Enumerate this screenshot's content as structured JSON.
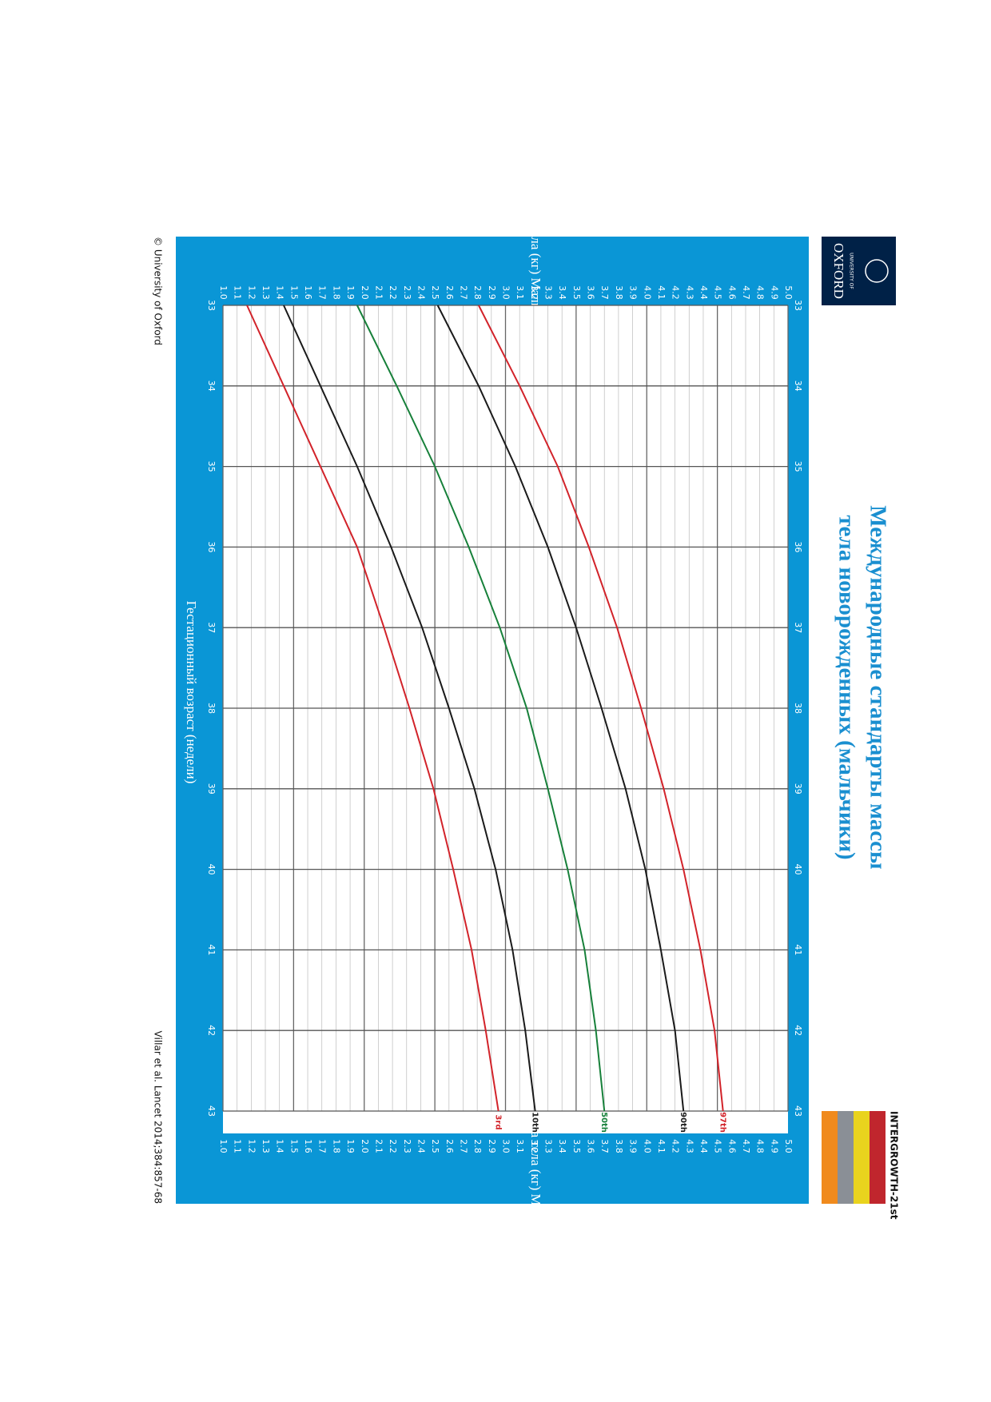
{
  "header": {
    "title_line1": "Международные стандарты массы",
    "title_line2": "тела   новорожденных (мальчики)",
    "oxford_small": "UNIVERSITY OF",
    "oxford": "OXFORD",
    "intergrowth": "INTERGROWTH-21st"
  },
  "chart_data": {
    "type": "line",
    "ylabel_left": "Масса тела (кг) Мальчики",
    "ylabel_right": "Масса тела  (кг) Мальчики",
    "xlabel": "Гестационный возраст (недели)",
    "x": [
      33,
      34,
      35,
      36,
      37,
      38,
      39,
      40,
      41,
      42,
      43
    ],
    "xlim": [
      33,
      43
    ],
    "xticks": [
      33,
      34,
      35,
      36,
      37,
      38,
      39,
      40,
      41,
      42,
      43
    ],
    "ylim": [
      1.0,
      5.0
    ],
    "yticks": [
      {
        "value": 1.0,
        "label": "1.0"
      },
      {
        "value": 1.1,
        "label": "1.1"
      },
      {
        "value": 1.2,
        "label": "1.2"
      },
      {
        "value": 1.3,
        "label": "1.3"
      },
      {
        "value": 1.4,
        "label": "1.4"
      },
      {
        "value": 1.5,
        "label": "1.5"
      },
      {
        "value": 1.6,
        "label": "1.6"
      },
      {
        "value": 1.7,
        "label": "1.7"
      },
      {
        "value": 1.8,
        "label": "1.8"
      },
      {
        "value": 1.9,
        "label": "1.9"
      },
      {
        "value": 2.0,
        "label": "2.0"
      },
      {
        "value": 2.1,
        "label": "2.1"
      },
      {
        "value": 2.2,
        "label": "2.2"
      },
      {
        "value": 2.3,
        "label": "2.3"
      },
      {
        "value": 2.4,
        "label": "2.4"
      },
      {
        "value": 2.5,
        "label": "2.5"
      },
      {
        "value": 2.6,
        "label": "2.6"
      },
      {
        "value": 2.7,
        "label": "2.7"
      },
      {
        "value": 2.8,
        "label": "2.8"
      },
      {
        "value": 2.9,
        "label": "2.9"
      },
      {
        "value": 3.0,
        "label": "3.0"
      },
      {
        "value": 3.1,
        "label": "3.1"
      },
      {
        "value": 3.2,
        "label": "3.2"
      },
      {
        "value": 3.3,
        "label": "3.3"
      },
      {
        "value": 3.4,
        "label": "3.4"
      },
      {
        "value": 3.5,
        "label": "3.5"
      },
      {
        "value": 3.6,
        "label": "3.6"
      },
      {
        "value": 3.7,
        "label": "3.7"
      },
      {
        "value": 3.8,
        "label": "3.8"
      },
      {
        "value": 3.9,
        "label": "3.9"
      },
      {
        "value": 4.0,
        "label": "4.0"
      },
      {
        "value": 4.1,
        "label": "4.1"
      },
      {
        "value": 4.2,
        "label": "4.2"
      },
      {
        "value": 4.3,
        "label": "4.3"
      },
      {
        "value": 4.4,
        "label": "4.4"
      },
      {
        "value": 4.5,
        "label": "4.5"
      },
      {
        "value": 4.6,
        "label": "4.6"
      },
      {
        "value": 4.7,
        "label": "4.7"
      },
      {
        "value": 4.8,
        "label": "4.8"
      },
      {
        "value": 4.9,
        "label": "4.9"
      },
      {
        "value": 5.0,
        "label": "5.0"
      }
    ],
    "grid": true,
    "series": [
      {
        "name": "3rd",
        "color": "#d2232a",
        "values": [
          1.17,
          1.43,
          1.69,
          1.95,
          2.14,
          2.32,
          2.49,
          2.63,
          2.76,
          2.86,
          2.95
        ]
      },
      {
        "name": "10th",
        "color": "#1a1a1a",
        "values": [
          1.43,
          1.69,
          1.95,
          2.19,
          2.41,
          2.6,
          2.78,
          2.93,
          3.05,
          3.14,
          3.21
        ]
      },
      {
        "name": "50th",
        "color": "#17803a",
        "values": [
          1.95,
          2.23,
          2.5,
          2.74,
          2.96,
          3.15,
          3.3,
          3.44,
          3.56,
          3.64,
          3.7
        ]
      },
      {
        "name": "90th",
        "color": "#1a1a1a",
        "values": [
          2.52,
          2.81,
          3.07,
          3.3,
          3.5,
          3.68,
          3.85,
          3.99,
          4.1,
          4.2,
          4.26
        ]
      },
      {
        "name": "97th",
        "color": "#d2232a",
        "values": [
          2.81,
          3.1,
          3.37,
          3.59,
          3.79,
          3.96,
          4.12,
          4.26,
          4.38,
          4.48,
          4.54
        ]
      }
    ]
  },
  "footer": {
    "left": "© University of Oxford",
    "right": "Villar et al. Lancet 2014;384:857-68"
  }
}
